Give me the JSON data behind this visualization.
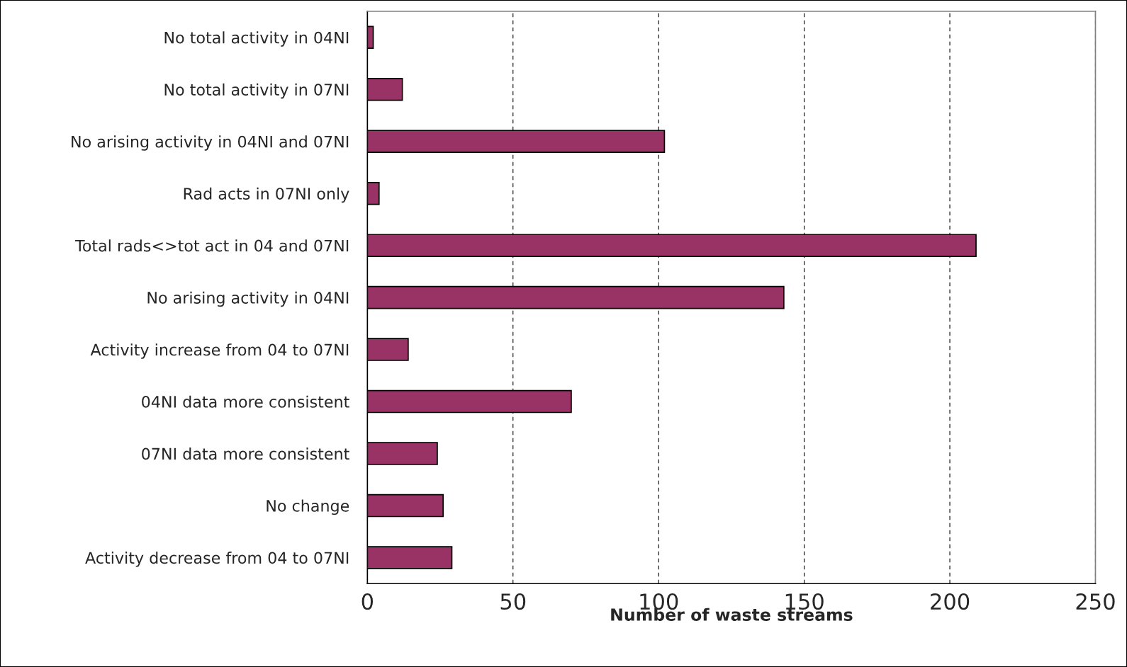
{
  "chart_data": {
    "type": "bar",
    "orientation": "horizontal",
    "xlabel": "Number of waste streams",
    "categories": [
      "No total activity in 04NI",
      "No total activity in 07NI",
      "No arising activity in 04NI and 07NI",
      "Rad acts in 07NI only",
      "Total rads<>tot act in 04 and 07NI",
      "No arising activity in 04NI",
      "Activity increase from 04 to 07NI",
      "04NI data more consistent",
      "07NI data more consistent",
      "No change",
      "Activity decrease from 04 to 07NI"
    ],
    "values": [
      2,
      12,
      102,
      4,
      209,
      143,
      14,
      70,
      24,
      26,
      29
    ],
    "color": "#993366",
    "xlim": [
      0,
      250
    ],
    "xticks": [
      0,
      50,
      100,
      150,
      200,
      250
    ],
    "grid": "x",
    "line_style": "dashed",
    "legend": false
  }
}
